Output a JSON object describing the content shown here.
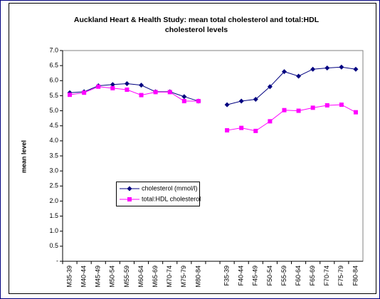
{
  "chart_data": {
    "type": "line",
    "title": [
      "Auckland Heart & Health Study: mean total cholesterol and total:HDL",
      "cholesterol levels"
    ],
    "y_label": "mean level",
    "categories": [
      "M35-39",
      "M40-44",
      "M45-49",
      "M50-54",
      "M55-59",
      "M60-64",
      "M65-69",
      "M70-74",
      "M75-79",
      "M80-84",
      null,
      "F35-39",
      "F40-44",
      "F45-49",
      "F50-54",
      "F55-59",
      "F60-64",
      "F65-69",
      "F70-74",
      "F75-79",
      "F80-84"
    ],
    "series": [
      {
        "name": "cholesterol (mmol/l)",
        "color": "#000080",
        "marker": "diamond",
        "values": [
          5.6,
          5.63,
          5.83,
          5.87,
          5.9,
          5.85,
          5.63,
          5.63,
          5.47,
          5.32,
          null,
          5.2,
          5.32,
          5.38,
          5.8,
          6.3,
          6.15,
          6.38,
          6.42,
          6.45,
          6.38
        ]
      },
      {
        "name": "total:HDL cholesterol",
        "color": "#ff00ff",
        "marker": "square",
        "values": [
          5.53,
          5.6,
          5.8,
          5.75,
          5.7,
          5.52,
          5.62,
          5.62,
          5.32,
          5.32,
          null,
          4.35,
          4.43,
          4.33,
          4.65,
          5.02,
          5.0,
          5.1,
          5.18,
          5.2,
          4.95
        ]
      }
    ],
    "ylim": [
      0,
      7
    ],
    "yticks": [
      {
        "value": 0,
        "label": "-"
      },
      0.5,
      {
        "value": 1,
        "label": "1.0"
      },
      1.5,
      {
        "value": 2,
        "label": "2.0"
      },
      2.5,
      {
        "value": 3,
        "label": "3.0"
      },
      3.5,
      {
        "value": 4,
        "label": "4.0"
      },
      4.5,
      {
        "value": 5,
        "label": "5.0"
      },
      5.5,
      {
        "value": 6,
        "label": "6.0"
      },
      6.5,
      {
        "value": 7,
        "label": "7.0"
      }
    ]
  }
}
